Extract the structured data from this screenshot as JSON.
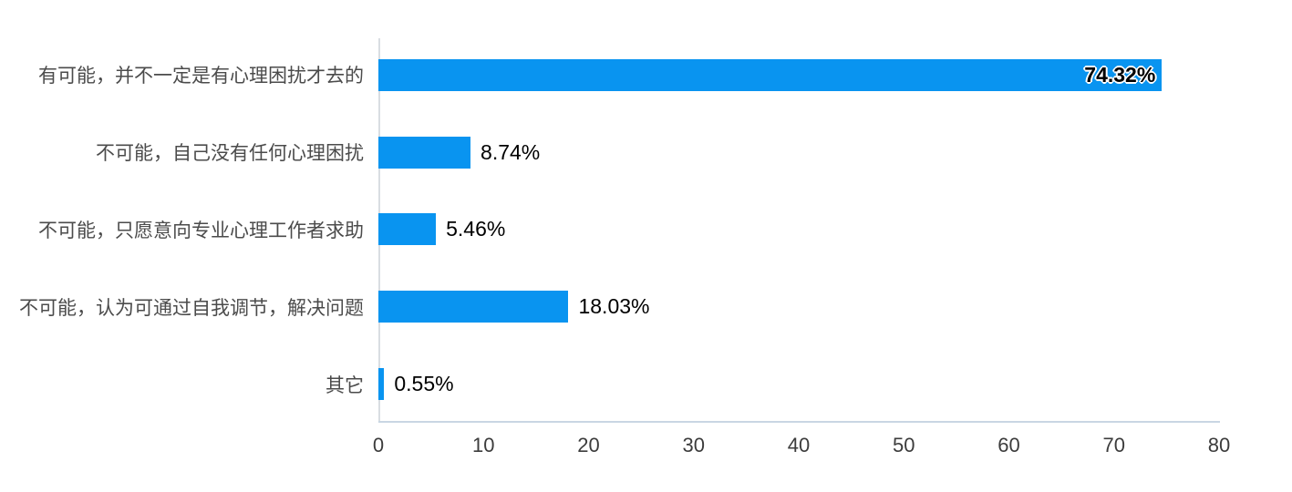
{
  "chart_data": {
    "type": "bar",
    "orientation": "horizontal",
    "title": "",
    "xlabel": "",
    "ylabel": "",
    "grid": false,
    "legend": false,
    "xlim": [
      0,
      80
    ],
    "x_ticks": [
      0,
      10,
      20,
      30,
      40,
      50,
      60,
      70,
      80
    ],
    "categories": [
      "有可能，并不一定是有心理困扰才去的",
      "不可能，自己没有任何心理困扰",
      "不可能，只愿意向专业心理工作者求助",
      "不可能，认为可通过自我调节，解决问题",
      "其它"
    ],
    "values": [
      74.32,
      8.74,
      5.46,
      18.03,
      0.55
    ],
    "value_labels": [
      "74.32%",
      "8.74%",
      "5.46%",
      "18.03%",
      "0.55%"
    ],
    "colors": {
      "bar": "#0994f0",
      "category_text": "#4b4b4b",
      "tick_text": "#3c3c3c",
      "value_text": "#000000",
      "y_axis_line": "#d9dde2",
      "x_axis_line": "#c9d6e3",
      "background": "#ffffff"
    }
  }
}
